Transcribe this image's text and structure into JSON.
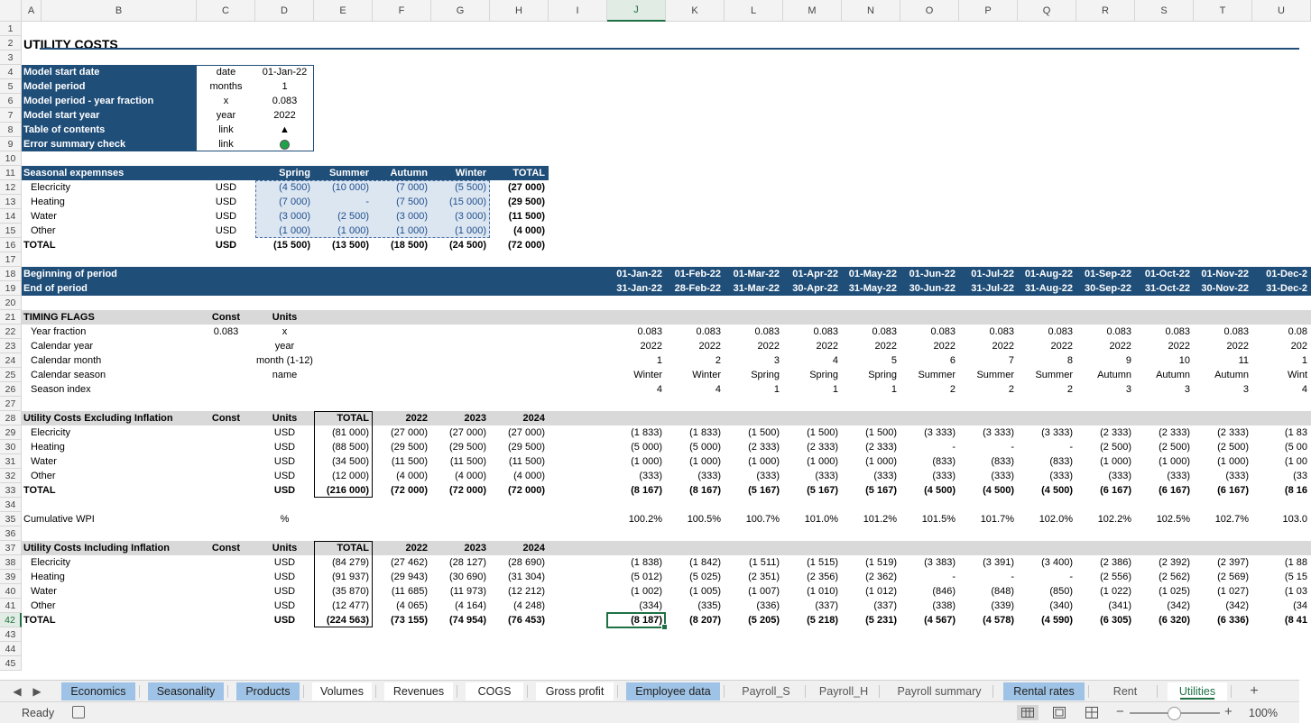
{
  "columns": [
    {
      "letter": "A"
    },
    {
      "letter": "B"
    },
    {
      "letter": "C"
    },
    {
      "letter": "D"
    },
    {
      "letter": "E"
    },
    {
      "letter": "F"
    },
    {
      "letter": "G"
    },
    {
      "letter": "H"
    },
    {
      "letter": "I"
    },
    {
      "letter": "J"
    },
    {
      "letter": "K"
    },
    {
      "letter": "L"
    },
    {
      "letter": "M"
    },
    {
      "letter": "N"
    },
    {
      "letter": "O"
    },
    {
      "letter": "P"
    },
    {
      "letter": "Q"
    },
    {
      "letter": "R"
    },
    {
      "letter": "S"
    },
    {
      "letter": "T"
    },
    {
      "letter": "U"
    }
  ],
  "selected_cell": "J42",
  "title": "UTILITY COSTS",
  "setup": [
    {
      "label": "Model start date",
      "unit": "date",
      "value": "01-Jan-22"
    },
    {
      "label": "Model period",
      "unit": "months",
      "value": "1"
    },
    {
      "label": "Model period - year fraction",
      "unit": "x",
      "value": "0.083"
    },
    {
      "label": "Model start year",
      "unit": "year",
      "value": "2022"
    },
    {
      "label": "Table of contents",
      "unit": "link",
      "value": "▲"
    },
    {
      "label": "Error summary check",
      "unit": "link",
      "value": ""
    }
  ],
  "seasonal": {
    "header": {
      "label": "Seasonal expemnses",
      "cols": [
        "Spring",
        "Summer",
        "Autumn",
        "Winter",
        "TOTAL"
      ]
    },
    "rows": [
      {
        "label": "Elecricity",
        "unit": "USD",
        "vals": [
          "(4 500)",
          "(10 000)",
          "(7 000)",
          "(5 500)",
          "(27 000)"
        ]
      },
      {
        "label": "Heating",
        "unit": "USD",
        "vals": [
          "(7 000)",
          "-",
          "(7 500)",
          "(15 000)",
          "(29 500)"
        ]
      },
      {
        "label": "Water",
        "unit": "USD",
        "vals": [
          "(3 000)",
          "(2 500)",
          "(3 000)",
          "(3 000)",
          "(11 500)"
        ]
      },
      {
        "label": "Other",
        "unit": "USD",
        "vals": [
          "(1 000)",
          "(1 000)",
          "(1 000)",
          "(1 000)",
          "(4 000)"
        ]
      }
    ],
    "total": {
      "label": "TOTAL",
      "unit": "USD",
      "vals": [
        "(15 500)",
        "(13 500)",
        "(18 500)",
        "(24 500)",
        "(72 000)"
      ]
    }
  },
  "periods": {
    "begin_label": "Beginning of period",
    "end_label": "End of period",
    "begin": [
      "01-Jan-22",
      "01-Feb-22",
      "01-Mar-22",
      "01-Apr-22",
      "01-May-22",
      "01-Jun-22",
      "01-Jul-22",
      "01-Aug-22",
      "01-Sep-22",
      "01-Oct-22",
      "01-Nov-22",
      "01-Dec-2"
    ],
    "end": [
      "31-Jan-22",
      "28-Feb-22",
      "31-Mar-22",
      "30-Apr-22",
      "31-May-22",
      "30-Jun-22",
      "31-Jul-22",
      "31-Aug-22",
      "30-Sep-22",
      "31-Oct-22",
      "30-Nov-22",
      "31-Dec-2"
    ]
  },
  "timing": {
    "header": {
      "label": "TIMING FLAGS",
      "const": "Const",
      "units": "Units"
    },
    "rows": [
      {
        "label": "Year fraction",
        "const": "0.083",
        "units": "x",
        "vals": [
          "0.083",
          "0.083",
          "0.083",
          "0.083",
          "0.083",
          "0.083",
          "0.083",
          "0.083",
          "0.083",
          "0.083",
          "0.083",
          "0.08"
        ]
      },
      {
        "label": "Calendar year",
        "const": "",
        "units": "year",
        "vals": [
          "2022",
          "2022",
          "2022",
          "2022",
          "2022",
          "2022",
          "2022",
          "2022",
          "2022",
          "2022",
          "2022",
          "202"
        ]
      },
      {
        "label": "Calendar month",
        "const": "",
        "units": "month (1-12)",
        "vals": [
          "1",
          "2",
          "3",
          "4",
          "5",
          "6",
          "7",
          "8",
          "9",
          "10",
          "11",
          "1"
        ]
      },
      {
        "label": "Calendar season",
        "const": "",
        "units": "name",
        "vals": [
          "Winter",
          "Winter",
          "Spring",
          "Spring",
          "Spring",
          "Summer",
          "Summer",
          "Summer",
          "Autumn",
          "Autumn",
          "Autumn",
          "Wint"
        ]
      },
      {
        "label": "Season index",
        "const": "",
        "units": "",
        "vals": [
          "4",
          "4",
          "1",
          "1",
          "1",
          "2",
          "2",
          "2",
          "3",
          "3",
          "3",
          "4"
        ]
      }
    ]
  },
  "excl": {
    "header": {
      "label": "Utility Costs Excluding Inflation",
      "const": "Const",
      "units": "Units",
      "total": "TOTAL",
      "years": [
        "2022",
        "2023",
        "2024"
      ]
    },
    "rows": [
      {
        "label": "Elecricity",
        "units": "USD",
        "total": "(81 000)",
        "years": [
          "(27 000)",
          "(27 000)",
          "(27 000)"
        ],
        "vals": [
          "(1 833)",
          "(1 833)",
          "(1 500)",
          "(1 500)",
          "(1 500)",
          "(3 333)",
          "(3 333)",
          "(3 333)",
          "(2 333)",
          "(2 333)",
          "(2 333)",
          "(1 83"
        ]
      },
      {
        "label": "Heating",
        "units": "USD",
        "total": "(88 500)",
        "years": [
          "(29 500)",
          "(29 500)",
          "(29 500)"
        ],
        "vals": [
          "(5 000)",
          "(5 000)",
          "(2 333)",
          "(2 333)",
          "(2 333)",
          "-",
          "-",
          "-",
          "(2 500)",
          "(2 500)",
          "(2 500)",
          "(5 00"
        ]
      },
      {
        "label": "Water",
        "units": "USD",
        "total": "(34 500)",
        "years": [
          "(11 500)",
          "(11 500)",
          "(11 500)"
        ],
        "vals": [
          "(1 000)",
          "(1 000)",
          "(1 000)",
          "(1 000)",
          "(1 000)",
          "(833)",
          "(833)",
          "(833)",
          "(1 000)",
          "(1 000)",
          "(1 000)",
          "(1 00"
        ]
      },
      {
        "label": "Other",
        "units": "USD",
        "total": "(12 000)",
        "years": [
          "(4 000)",
          "(4 000)",
          "(4 000)"
        ],
        "vals": [
          "(333)",
          "(333)",
          "(333)",
          "(333)",
          "(333)",
          "(333)",
          "(333)",
          "(333)",
          "(333)",
          "(333)",
          "(333)",
          "(33"
        ]
      }
    ],
    "total": {
      "label": "TOTAL",
      "units": "USD",
      "total": "(216 000)",
      "years": [
        "(72 000)",
        "(72 000)",
        "(72 000)"
      ],
      "vals": [
        "(8 167)",
        "(8 167)",
        "(5 167)",
        "(5 167)",
        "(5 167)",
        "(4 500)",
        "(4 500)",
        "(4 500)",
        "(6 167)",
        "(6 167)",
        "(6 167)",
        "(8 16"
      ]
    }
  },
  "wpi": {
    "label": "Cumulative WPI",
    "units": "%",
    "vals": [
      "100.2%",
      "100.5%",
      "100.7%",
      "101.0%",
      "101.2%",
      "101.5%",
      "101.7%",
      "102.0%",
      "102.2%",
      "102.5%",
      "102.7%",
      "103.0"
    ]
  },
  "incl": {
    "header": {
      "label": "Utility Costs Including Inflation",
      "const": "Const",
      "units": "Units",
      "total": "TOTAL",
      "years": [
        "2022",
        "2023",
        "2024"
      ]
    },
    "rows": [
      {
        "label": "Elecricity",
        "units": "USD",
        "total": "(84 279)",
        "years": [
          "(27 462)",
          "(28 127)",
          "(28 690)"
        ],
        "vals": [
          "(1 838)",
          "(1 842)",
          "(1 511)",
          "(1 515)",
          "(1 519)",
          "(3 383)",
          "(3 391)",
          "(3 400)",
          "(2 386)",
          "(2 392)",
          "(2 397)",
          "(1 88"
        ]
      },
      {
        "label": "Heating",
        "units": "USD",
        "total": "(91 937)",
        "years": [
          "(29 943)",
          "(30 690)",
          "(31 304)"
        ],
        "vals": [
          "(5 012)",
          "(5 025)",
          "(2 351)",
          "(2 356)",
          "(2 362)",
          "-",
          "-",
          "-",
          "(2 556)",
          "(2 562)",
          "(2 569)",
          "(5 15"
        ]
      },
      {
        "label": "Water",
        "units": "USD",
        "total": "(35 870)",
        "years": [
          "(11 685)",
          "(11 973)",
          "(12 212)"
        ],
        "vals": [
          "(1 002)",
          "(1 005)",
          "(1 007)",
          "(1 010)",
          "(1 012)",
          "(846)",
          "(848)",
          "(850)",
          "(1 022)",
          "(1 025)",
          "(1 027)",
          "(1 03"
        ]
      },
      {
        "label": "Other",
        "units": "USD",
        "total": "(12 477)",
        "years": [
          "(4 065)",
          "(4 164)",
          "(4 248)"
        ],
        "vals": [
          "(334)",
          "(335)",
          "(336)",
          "(337)",
          "(337)",
          "(338)",
          "(339)",
          "(340)",
          "(341)",
          "(342)",
          "(342)",
          "(34"
        ]
      }
    ],
    "total": {
      "label": "TOTAL",
      "units": "USD",
      "total": "(224 563)",
      "years": [
        "(73 155)",
        "(74 954)",
        "(76 453)"
      ],
      "vals": [
        "(8 187)",
        "(8 207)",
        "(5 205)",
        "(5 218)",
        "(5 231)",
        "(4 567)",
        "(4 578)",
        "(4 590)",
        "(6 305)",
        "(6 320)",
        "(6 336)",
        "(8 41"
      ]
    }
  },
  "tabs": [
    {
      "label": "Economics",
      "style": "blue"
    },
    {
      "label": "Seasonality",
      "style": "blue"
    },
    {
      "label": "Products",
      "style": "blue"
    },
    {
      "label": "Volumes",
      "style": "white"
    },
    {
      "label": "Revenues",
      "style": "white"
    },
    {
      "label": "COGS",
      "style": "white"
    },
    {
      "label": "Gross profit",
      "style": "white"
    },
    {
      "label": "Employee data",
      "style": "blue"
    },
    {
      "label": "Payroll_S",
      "style": "gray"
    },
    {
      "label": "Payroll_H",
      "style": "gray"
    },
    {
      "label": "Payroll summary",
      "style": "gray"
    },
    {
      "label": "Rental rates",
      "style": "blue"
    },
    {
      "label": "Rent",
      "style": "gray"
    },
    {
      "label": "Utilities",
      "style": "active"
    }
  ],
  "add_sheet": "+",
  "status": {
    "ready": "Ready",
    "zoom": "100%"
  },
  "colors": {
    "navy": "#1f4e79",
    "input_fill": "#dce6f1",
    "accent_green": "#1e7145",
    "tab_blue": "#9fc3e6"
  }
}
